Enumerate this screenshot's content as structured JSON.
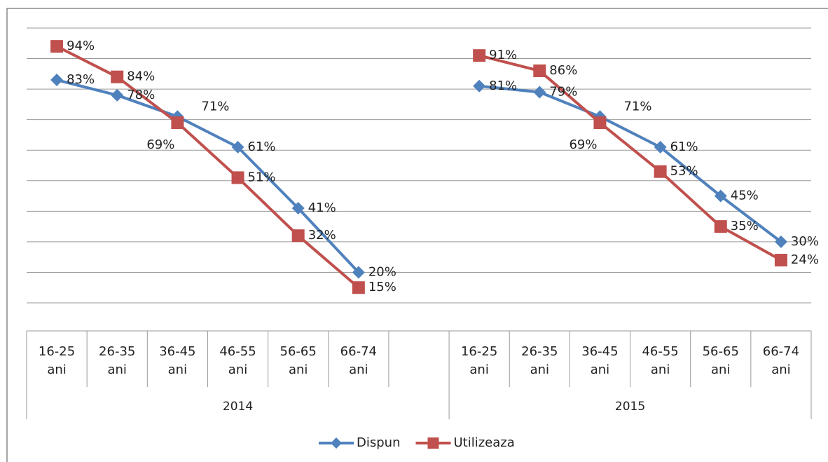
{
  "chart_data": {
    "type": "line",
    "categories": [
      "16-25 ani",
      "26-35 ani",
      "36-45 ani",
      "46-55 ani",
      "56-65 ani",
      "66-74 ani",
      null,
      "16-25 ani",
      "26-35 ani",
      "36-45 ani",
      "46-55 ani",
      "56-65 ani",
      "66-74 ani"
    ],
    "group_labels": [
      "2014",
      "2015"
    ],
    "series": [
      {
        "name": "Dispun",
        "color": "#4f81bd",
        "marker": "diamond",
        "values": [
          83,
          78,
          71,
          61,
          41,
          20,
          null,
          81,
          79,
          71,
          61,
          45,
          30
        ],
        "value_labels": [
          "83%",
          "78%",
          "71%",
          "61%",
          "41%",
          "20%",
          null,
          "81%",
          "79%",
          "71%",
          "61%",
          "45%",
          "30%"
        ]
      },
      {
        "name": "Utilizeaza",
        "color": "#c0504d",
        "marker": "square",
        "values": [
          94,
          84,
          69,
          51,
          32,
          15,
          null,
          91,
          86,
          69,
          53,
          35,
          24
        ],
        "value_labels": [
          "94%",
          "84%",
          "69%",
          "51%",
          "32%",
          "15%",
          null,
          "91%",
          "86%",
          "69%",
          "53%",
          "35%",
          "24%"
        ]
      }
    ],
    "ylim": [
      10,
      100
    ],
    "yticks": [
      10,
      20,
      30,
      40,
      50,
      60,
      70,
      80,
      90,
      100
    ],
    "grid": true,
    "legend": "bottom"
  }
}
